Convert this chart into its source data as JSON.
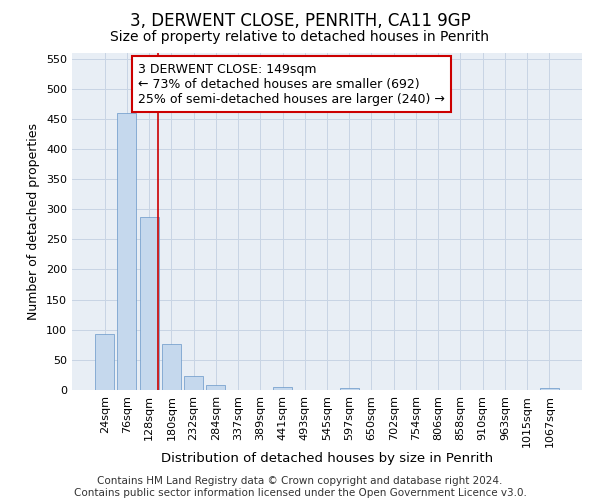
{
  "title": "3, DERWENT CLOSE, PENRITH, CA11 9GP",
  "subtitle": "Size of property relative to detached houses in Penrith",
  "xlabel": "Distribution of detached houses by size in Penrith",
  "ylabel": "Number of detached properties",
  "categories": [
    "24sqm",
    "76sqm",
    "128sqm",
    "180sqm",
    "232sqm",
    "284sqm",
    "337sqm",
    "389sqm",
    "441sqm",
    "493sqm",
    "545sqm",
    "597sqm",
    "650sqm",
    "702sqm",
    "754sqm",
    "806sqm",
    "858sqm",
    "910sqm",
    "963sqm",
    "1015sqm",
    "1067sqm"
  ],
  "values": [
    93,
    460,
    287,
    76,
    24,
    9,
    0,
    0,
    5,
    0,
    0,
    3,
    0,
    0,
    0,
    0,
    0,
    0,
    0,
    0,
    3
  ],
  "bar_color": "#c5d8ed",
  "bar_edge_color": "#6897c8",
  "bar_edge_width": 0.5,
  "vline_color": "#cc0000",
  "ylim": [
    0,
    560
  ],
  "yticks": [
    0,
    50,
    100,
    150,
    200,
    250,
    300,
    350,
    400,
    450,
    500,
    550
  ],
  "annotation_text": "3 DERWENT CLOSE: 149sqm\n← 73% of detached houses are smaller (692)\n25% of semi-detached houses are larger (240) →",
  "annotation_box_color": "#ffffff",
  "annotation_box_edge_color": "#cc0000",
  "footer_text": "Contains HM Land Registry data © Crown copyright and database right 2024.\nContains public sector information licensed under the Open Government Licence v3.0.",
  "background_color": "#ffffff",
  "plot_bg_color": "#e8eef5",
  "grid_color": "#c8d4e4",
  "title_fontsize": 12,
  "subtitle_fontsize": 10,
  "tick_fontsize": 8,
  "ylabel_fontsize": 9,
  "xlabel_fontsize": 9.5,
  "footer_fontsize": 7.5,
  "ann_fontsize": 9
}
